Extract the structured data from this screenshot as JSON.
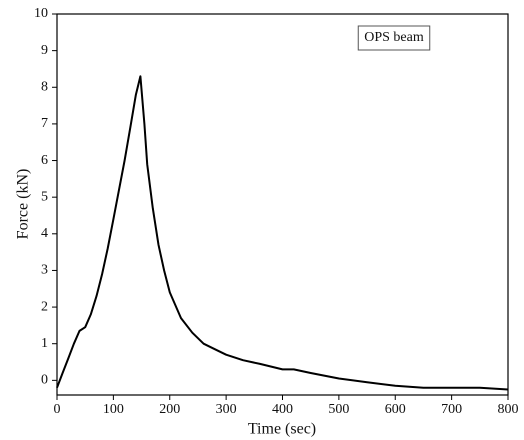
{
  "chart_data": {
    "type": "line",
    "x_label": "Time (sec)",
    "y_label": "Force (kN)",
    "x": [
      0,
      10,
      20,
      30,
      40,
      50,
      60,
      70,
      80,
      90,
      100,
      110,
      120,
      130,
      140,
      148,
      155,
      160,
      170,
      180,
      190,
      200,
      220,
      240,
      260,
      280,
      300,
      330,
      360,
      400,
      420,
      450,
      500,
      550,
      600,
      650,
      700,
      750,
      800
    ],
    "series": [
      {
        "name": "OPS beam",
        "color": "#000000",
        "values": [
          -0.2,
          0.2,
          0.6,
          1.0,
          1.35,
          1.45,
          1.8,
          2.3,
          2.9,
          3.6,
          4.4,
          5.2,
          6.0,
          6.9,
          7.8,
          8.3,
          7.0,
          5.9,
          4.7,
          3.7,
          3.0,
          2.4,
          1.7,
          1.3,
          1.0,
          0.85,
          0.7,
          0.55,
          0.45,
          0.3,
          0.3,
          0.2,
          0.05,
          -0.05,
          -0.15,
          -0.2,
          -0.2,
          -0.2,
          -0.25
        ]
      }
    ],
    "xlim": [
      0,
      800
    ],
    "xticks": [
      0,
      100,
      200,
      300,
      400,
      500,
      600,
      700,
      800
    ],
    "ylim": [
      -0.4,
      10
    ],
    "yticks": [
      0,
      1,
      2,
      3,
      4,
      5,
      6,
      7,
      8,
      9,
      10
    ],
    "legend": "upper right"
  }
}
